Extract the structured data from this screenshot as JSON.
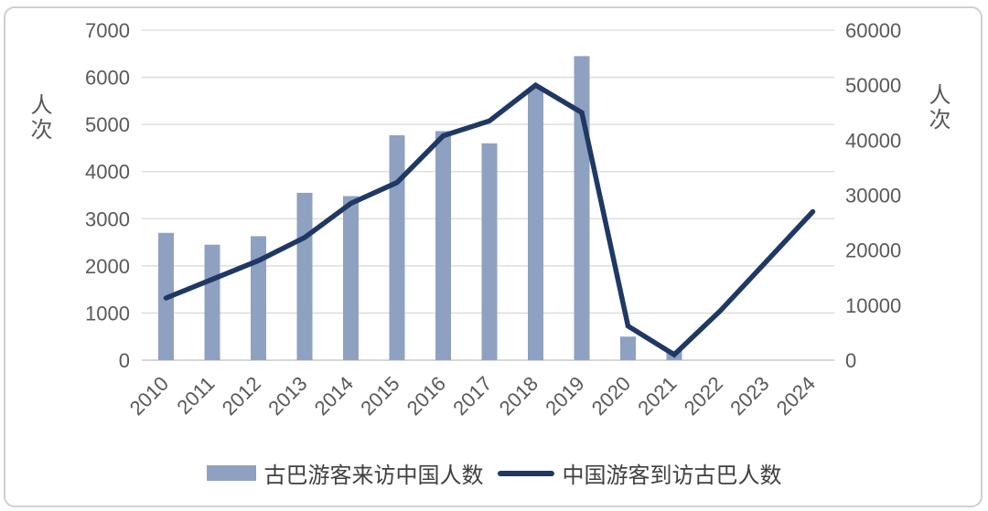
{
  "chart_data": {
    "type": "combo",
    "categories": [
      "2010",
      "2011",
      "2012",
      "2013",
      "2014",
      "2015",
      "2016",
      "2017",
      "2018",
      "2019",
      "2020",
      "2021",
      "2022",
      "2023",
      "2024"
    ],
    "series": [
      {
        "name": "古巴游客来访中国人数",
        "type": "bar",
        "axis": "left",
        "values": [
          2700,
          2450,
          2630,
          3550,
          3480,
          4770,
          4860,
          4600,
          5780,
          6450,
          500,
          200,
          null,
          null,
          null
        ]
      },
      {
        "name": "中国游客到访古巴人数",
        "type": "line",
        "axis": "right",
        "values": [
          11300,
          14700,
          18100,
          22300,
          28500,
          32300,
          40800,
          43500,
          50000,
          45000,
          6200,
          1000,
          9000,
          18000,
          27000
        ]
      }
    ],
    "left_axis": {
      "title": "人次",
      "min": 0,
      "max": 7000,
      "ticks": [
        "7000",
        "6000",
        "5000",
        "4000",
        "3000",
        "2000",
        "1000",
        "0"
      ]
    },
    "right_axis": {
      "title": "人次",
      "min": 0,
      "max": 60000,
      "ticks": [
        "60000",
        "50000",
        "40000",
        "30000",
        "20000",
        "10000",
        "0"
      ]
    },
    "grid": true,
    "legend_position": "bottom"
  },
  "legend": {
    "bar_label": "古巴游客来访中国人数",
    "line_label": "中国游客到访古巴人数"
  },
  "colors": {
    "bar": "#8FA1C0",
    "line": "#1F3864",
    "tick_text": "#595959",
    "grid": "#D9D9D9",
    "axis_line": "#BFBFBF",
    "legend_text": "#3F3F3F"
  }
}
